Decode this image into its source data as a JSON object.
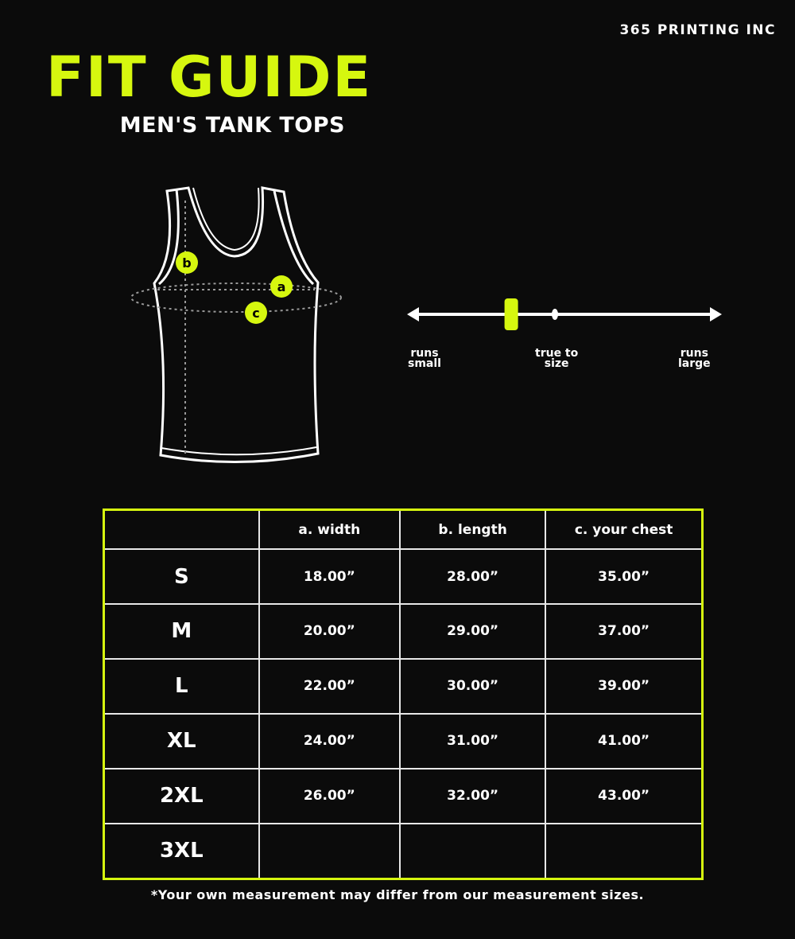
{
  "brand": "365 PRINTING INC",
  "title": "FIT GUIDE",
  "subtitle": "MEN'S TANK TOPS",
  "accent_color": "#d6f70f",
  "diagram": {
    "labels": {
      "a": "a",
      "b": "b",
      "c": "c"
    }
  },
  "fit_scale": {
    "left_label_1": "runs",
    "left_label_2": "small",
    "center_label_1": "true to",
    "center_label_2": "size",
    "right_label_1": "runs",
    "right_label_2": "large",
    "position": -0.3,
    "range": [
      -1,
      1
    ]
  },
  "table": {
    "headers": [
      "",
      "a. width",
      "b. length",
      "c. your chest"
    ],
    "rows": [
      {
        "size": "S",
        "width": "18.00”",
        "length": "28.00”",
        "chest": "35.00”"
      },
      {
        "size": "M",
        "width": "20.00”",
        "length": "29.00”",
        "chest": "37.00”"
      },
      {
        "size": "L",
        "width": "22.00”",
        "length": "30.00”",
        "chest": "39.00”"
      },
      {
        "size": "XL",
        "width": "24.00”",
        "length": "31.00”",
        "chest": "41.00”"
      },
      {
        "size": "2XL",
        "width": "26.00”",
        "length": "32.00”",
        "chest": "43.00”"
      },
      {
        "size": "3XL",
        "width": "",
        "length": "",
        "chest": ""
      }
    ]
  },
  "note": "*Your own measurement may differ from our measurement sizes."
}
